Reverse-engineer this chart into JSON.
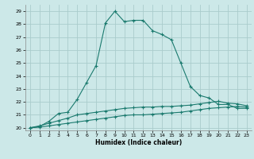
{
  "title": "",
  "xlabel": "Humidex (Indice chaleur)",
  "ylabel": "",
  "bg_color": "#cce8e8",
  "grid_color": "#aacccc",
  "line_color": "#1a7a6e",
  "xlim": [
    -0.5,
    23.5
  ],
  "ylim": [
    19.8,
    29.5
  ],
  "xticks": [
    0,
    1,
    2,
    3,
    4,
    5,
    6,
    7,
    8,
    9,
    10,
    11,
    12,
    13,
    14,
    15,
    16,
    17,
    18,
    19,
    20,
    21,
    22,
    23
  ],
  "yticks": [
    20,
    21,
    22,
    23,
    24,
    25,
    26,
    27,
    28,
    29
  ],
  "curve1_x": [
    0,
    1,
    2,
    3,
    4,
    5,
    6,
    7,
    8,
    9,
    10,
    11,
    12,
    13,
    14,
    15,
    16,
    17,
    18,
    19,
    20,
    21,
    22,
    23
  ],
  "curve1_y": [
    20.0,
    20.1,
    20.5,
    21.1,
    21.2,
    22.2,
    23.5,
    24.8,
    28.1,
    29.0,
    28.2,
    28.3,
    28.3,
    27.5,
    27.2,
    26.8,
    25.0,
    23.2,
    22.5,
    22.3,
    21.8,
    21.8,
    21.5,
    21.5
  ],
  "curve2_x": [
    0,
    1,
    2,
    3,
    4,
    5,
    6,
    7,
    8,
    9,
    10,
    11,
    12,
    13,
    14,
    15,
    16,
    17,
    18,
    19,
    20,
    21,
    22,
    23
  ],
  "curve2_y": [
    20.0,
    20.15,
    20.35,
    20.55,
    20.75,
    21.0,
    21.1,
    21.2,
    21.3,
    21.4,
    21.5,
    21.55,
    21.6,
    21.6,
    21.65,
    21.65,
    21.7,
    21.75,
    21.85,
    21.95,
    22.05,
    21.9,
    21.85,
    21.7
  ],
  "curve3_x": [
    0,
    1,
    2,
    3,
    4,
    5,
    6,
    7,
    8,
    9,
    10,
    11,
    12,
    13,
    14,
    15,
    16,
    17,
    18,
    19,
    20,
    21,
    22,
    23
  ],
  "curve3_y": [
    20.0,
    20.05,
    20.15,
    20.25,
    20.35,
    20.45,
    20.55,
    20.65,
    20.75,
    20.85,
    20.95,
    21.0,
    21.0,
    21.05,
    21.1,
    21.15,
    21.2,
    21.3,
    21.4,
    21.5,
    21.55,
    21.6,
    21.65,
    21.6
  ]
}
